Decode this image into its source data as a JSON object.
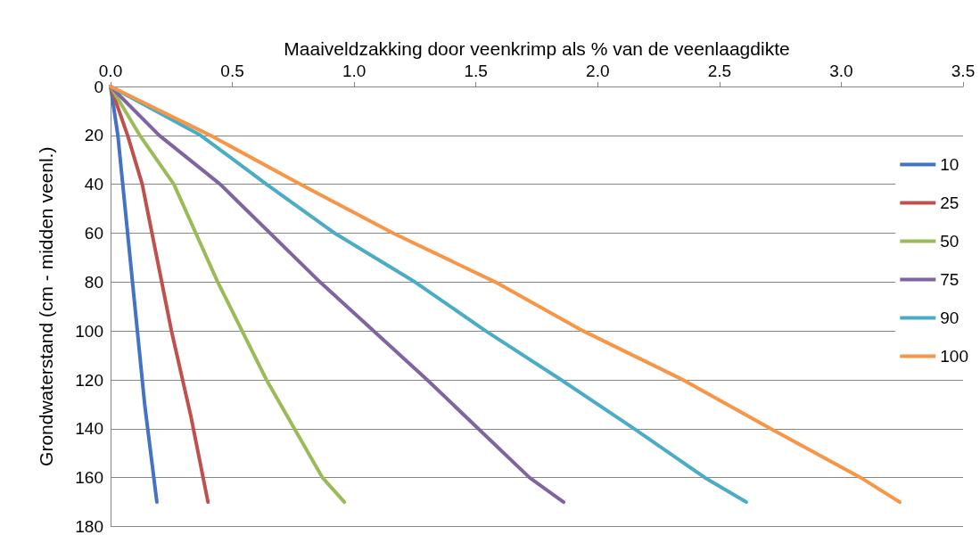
{
  "chart_data": {
    "type": "line",
    "xlabel": "Maaiveldzakking door veenkrimp als % van de veenlaagdikte",
    "ylabel": "Grondwaterstand (cm - midden veenl.)",
    "xlim": [
      0,
      3.5
    ],
    "xticks": [
      {
        "value": 0,
        "label": "0.0"
      },
      0.5,
      {
        "value": 1,
        "label": "1.0"
      },
      1.5,
      {
        "value": 2,
        "label": "2.0"
      },
      2.5,
      {
        "value": 3,
        "label": "3.0"
      },
      3.5
    ],
    "ylim": [
      180,
      0
    ],
    "yticks": [
      0,
      20,
      40,
      60,
      80,
      100,
      120,
      140,
      160,
      180
    ],
    "grid": "y",
    "legend": "right",
    "marker": "none",
    "line_style": "solid",
    "series": [
      {
        "name": "10",
        "color": "#4472c4",
        "x": [
          0,
          0.03,
          0.06,
          0.1,
          0.14,
          0.19
        ],
        "values": [
          0,
          20,
          50,
          90,
          130,
          170
        ]
      },
      {
        "name": "25",
        "color": "#c0504d",
        "x": [
          0,
          0.07,
          0.13,
          0.19,
          0.25,
          0.33,
          0.4
        ],
        "values": [
          0,
          20,
          40,
          70,
          100,
          135,
          170
        ]
      },
      {
        "name": "50",
        "color": "#9bbb59",
        "x": [
          0,
          0.12,
          0.26,
          0.44,
          0.64,
          0.87,
          0.96
        ],
        "values": [
          0,
          20,
          40,
          80,
          120,
          160,
          170
        ]
      },
      {
        "name": "75",
        "color": "#8064a2",
        "x": [
          0,
          0.2,
          0.45,
          0.86,
          1.3,
          1.72,
          1.86
        ],
        "values": [
          0,
          20,
          40,
          80,
          120,
          160,
          170
        ]
      },
      {
        "name": "90",
        "color": "#4bacc6",
        "x": [
          0,
          0.37,
          0.64,
          0.92,
          1.25,
          1.54,
          1.85,
          2.15,
          2.44,
          2.61
        ],
        "values": [
          0,
          20,
          40,
          60,
          80,
          100,
          120,
          140,
          160,
          170
        ]
      },
      {
        "name": "100",
        "color": "#f79646",
        "x": [
          0,
          0.41,
          0.78,
          1.16,
          1.58,
          1.94,
          2.35,
          2.71,
          3.08,
          3.24
        ],
        "values": [
          0,
          20,
          40,
          60,
          80,
          100,
          120,
          140,
          160,
          170
        ]
      }
    ]
  }
}
